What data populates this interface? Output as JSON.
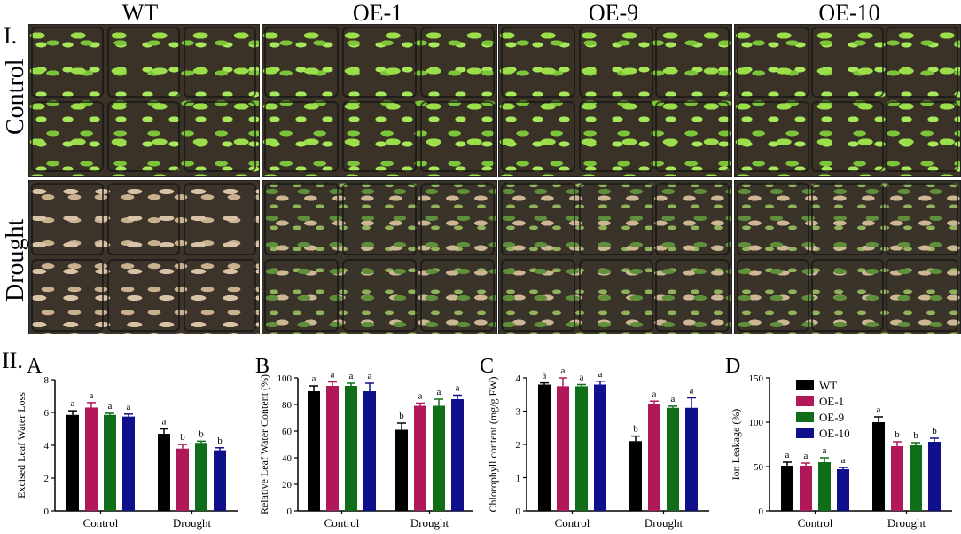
{
  "part1": {
    "label": "I.",
    "genotypes": [
      "WT",
      "OE-1",
      "OE-9",
      "OE-10"
    ],
    "rows": [
      "Control",
      "Drought"
    ]
  },
  "part2": {
    "label": "II."
  },
  "legend": [
    {
      "name": "WT",
      "color": "#000000"
    },
    {
      "name": "OE-1",
      "color": "#b0185a"
    },
    {
      "name": "OE-9",
      "color": "#0f6e17"
    },
    {
      "name": "OE-10",
      "color": "#10108c"
    }
  ],
  "chart_data": [
    {
      "panel": "A",
      "type": "bar",
      "categories": [
        "Control",
        "Drought"
      ],
      "ylabel": "Excised Leaf Water Loss",
      "ylim": [
        0,
        8
      ],
      "yticks": [
        0,
        2,
        4,
        6,
        8
      ],
      "series": [
        {
          "name": "WT",
          "values": [
            5.85,
            4.7
          ],
          "errors": [
            0.25,
            0.3
          ],
          "letters": [
            "a",
            "a"
          ]
        },
        {
          "name": "OE-1",
          "values": [
            6.3,
            3.8
          ],
          "errors": [
            0.3,
            0.25
          ],
          "letters": [
            "a",
            "b"
          ]
        },
        {
          "name": "OE-9",
          "values": [
            5.85,
            4.15
          ],
          "errors": [
            0.1,
            0.1
          ],
          "letters": [
            "a",
            "b"
          ]
        },
        {
          "name": "OE-10",
          "values": [
            5.75,
            3.7
          ],
          "errors": [
            0.15,
            0.15
          ],
          "letters": [
            "a",
            "b"
          ]
        }
      ]
    },
    {
      "panel": "B",
      "type": "bar",
      "categories": [
        "Control",
        "Drought"
      ],
      "ylabel": "Relative Leaf Water Content (%)",
      "ylim": [
        0,
        100
      ],
      "yticks": [
        0,
        20,
        40,
        60,
        80,
        100
      ],
      "series": [
        {
          "name": "WT",
          "values": [
            90,
            61
          ],
          "errors": [
            4,
            5
          ],
          "letters": [
            "a",
            "b"
          ]
        },
        {
          "name": "OE-1",
          "values": [
            94,
            79
          ],
          "errors": [
            3,
            2
          ],
          "letters": [
            "a",
            "a"
          ]
        },
        {
          "name": "OE-9",
          "values": [
            94,
            79
          ],
          "errors": [
            2,
            5
          ],
          "letters": [
            "a",
            "a"
          ]
        },
        {
          "name": "OE-10",
          "values": [
            90,
            84
          ],
          "errors": [
            6,
            3
          ],
          "letters": [
            "a",
            "a"
          ]
        }
      ]
    },
    {
      "panel": "C",
      "type": "bar",
      "categories": [
        "Control",
        "Drought"
      ],
      "ylabel": "Chlorophyll content (mg/g FW)",
      "ylim": [
        0,
        4
      ],
      "yticks": [
        0,
        1,
        2,
        3,
        4
      ],
      "series": [
        {
          "name": "WT",
          "values": [
            3.8,
            2.1
          ],
          "errors": [
            0.05,
            0.15
          ],
          "letters": [
            "a",
            "b"
          ]
        },
        {
          "name": "OE-1",
          "values": [
            3.75,
            3.2
          ],
          "errors": [
            0.25,
            0.1
          ],
          "letters": [
            "a",
            "a"
          ]
        },
        {
          "name": "OE-9",
          "values": [
            3.75,
            3.1
          ],
          "errors": [
            0.05,
            0.05
          ],
          "letters": [
            "a",
            "a"
          ]
        },
        {
          "name": "OE-10",
          "values": [
            3.8,
            3.1
          ],
          "errors": [
            0.1,
            0.3
          ],
          "letters": [
            "a",
            "a"
          ]
        }
      ]
    },
    {
      "panel": "D",
      "type": "bar",
      "categories": [
        "Control",
        "Drought"
      ],
      "ylabel": "Ion Leakage (%)",
      "ylim": [
        0,
        150
      ],
      "yticks": [
        0,
        50,
        100,
        150
      ],
      "series": [
        {
          "name": "WT",
          "values": [
            51,
            100
          ],
          "errors": [
            4,
            6
          ],
          "letters": [
            "a",
            "a"
          ]
        },
        {
          "name": "OE-1",
          "values": [
            51,
            73
          ],
          "errors": [
            3,
            5
          ],
          "letters": [
            "a",
            "b"
          ]
        },
        {
          "name": "OE-9",
          "values": [
            55,
            74
          ],
          "errors": [
            5,
            3
          ],
          "letters": [
            "a",
            "b"
          ]
        },
        {
          "name": "OE-10",
          "values": [
            47,
            78
          ],
          "errors": [
            2,
            4
          ],
          "letters": [
            "a",
            "b"
          ]
        }
      ]
    }
  ]
}
